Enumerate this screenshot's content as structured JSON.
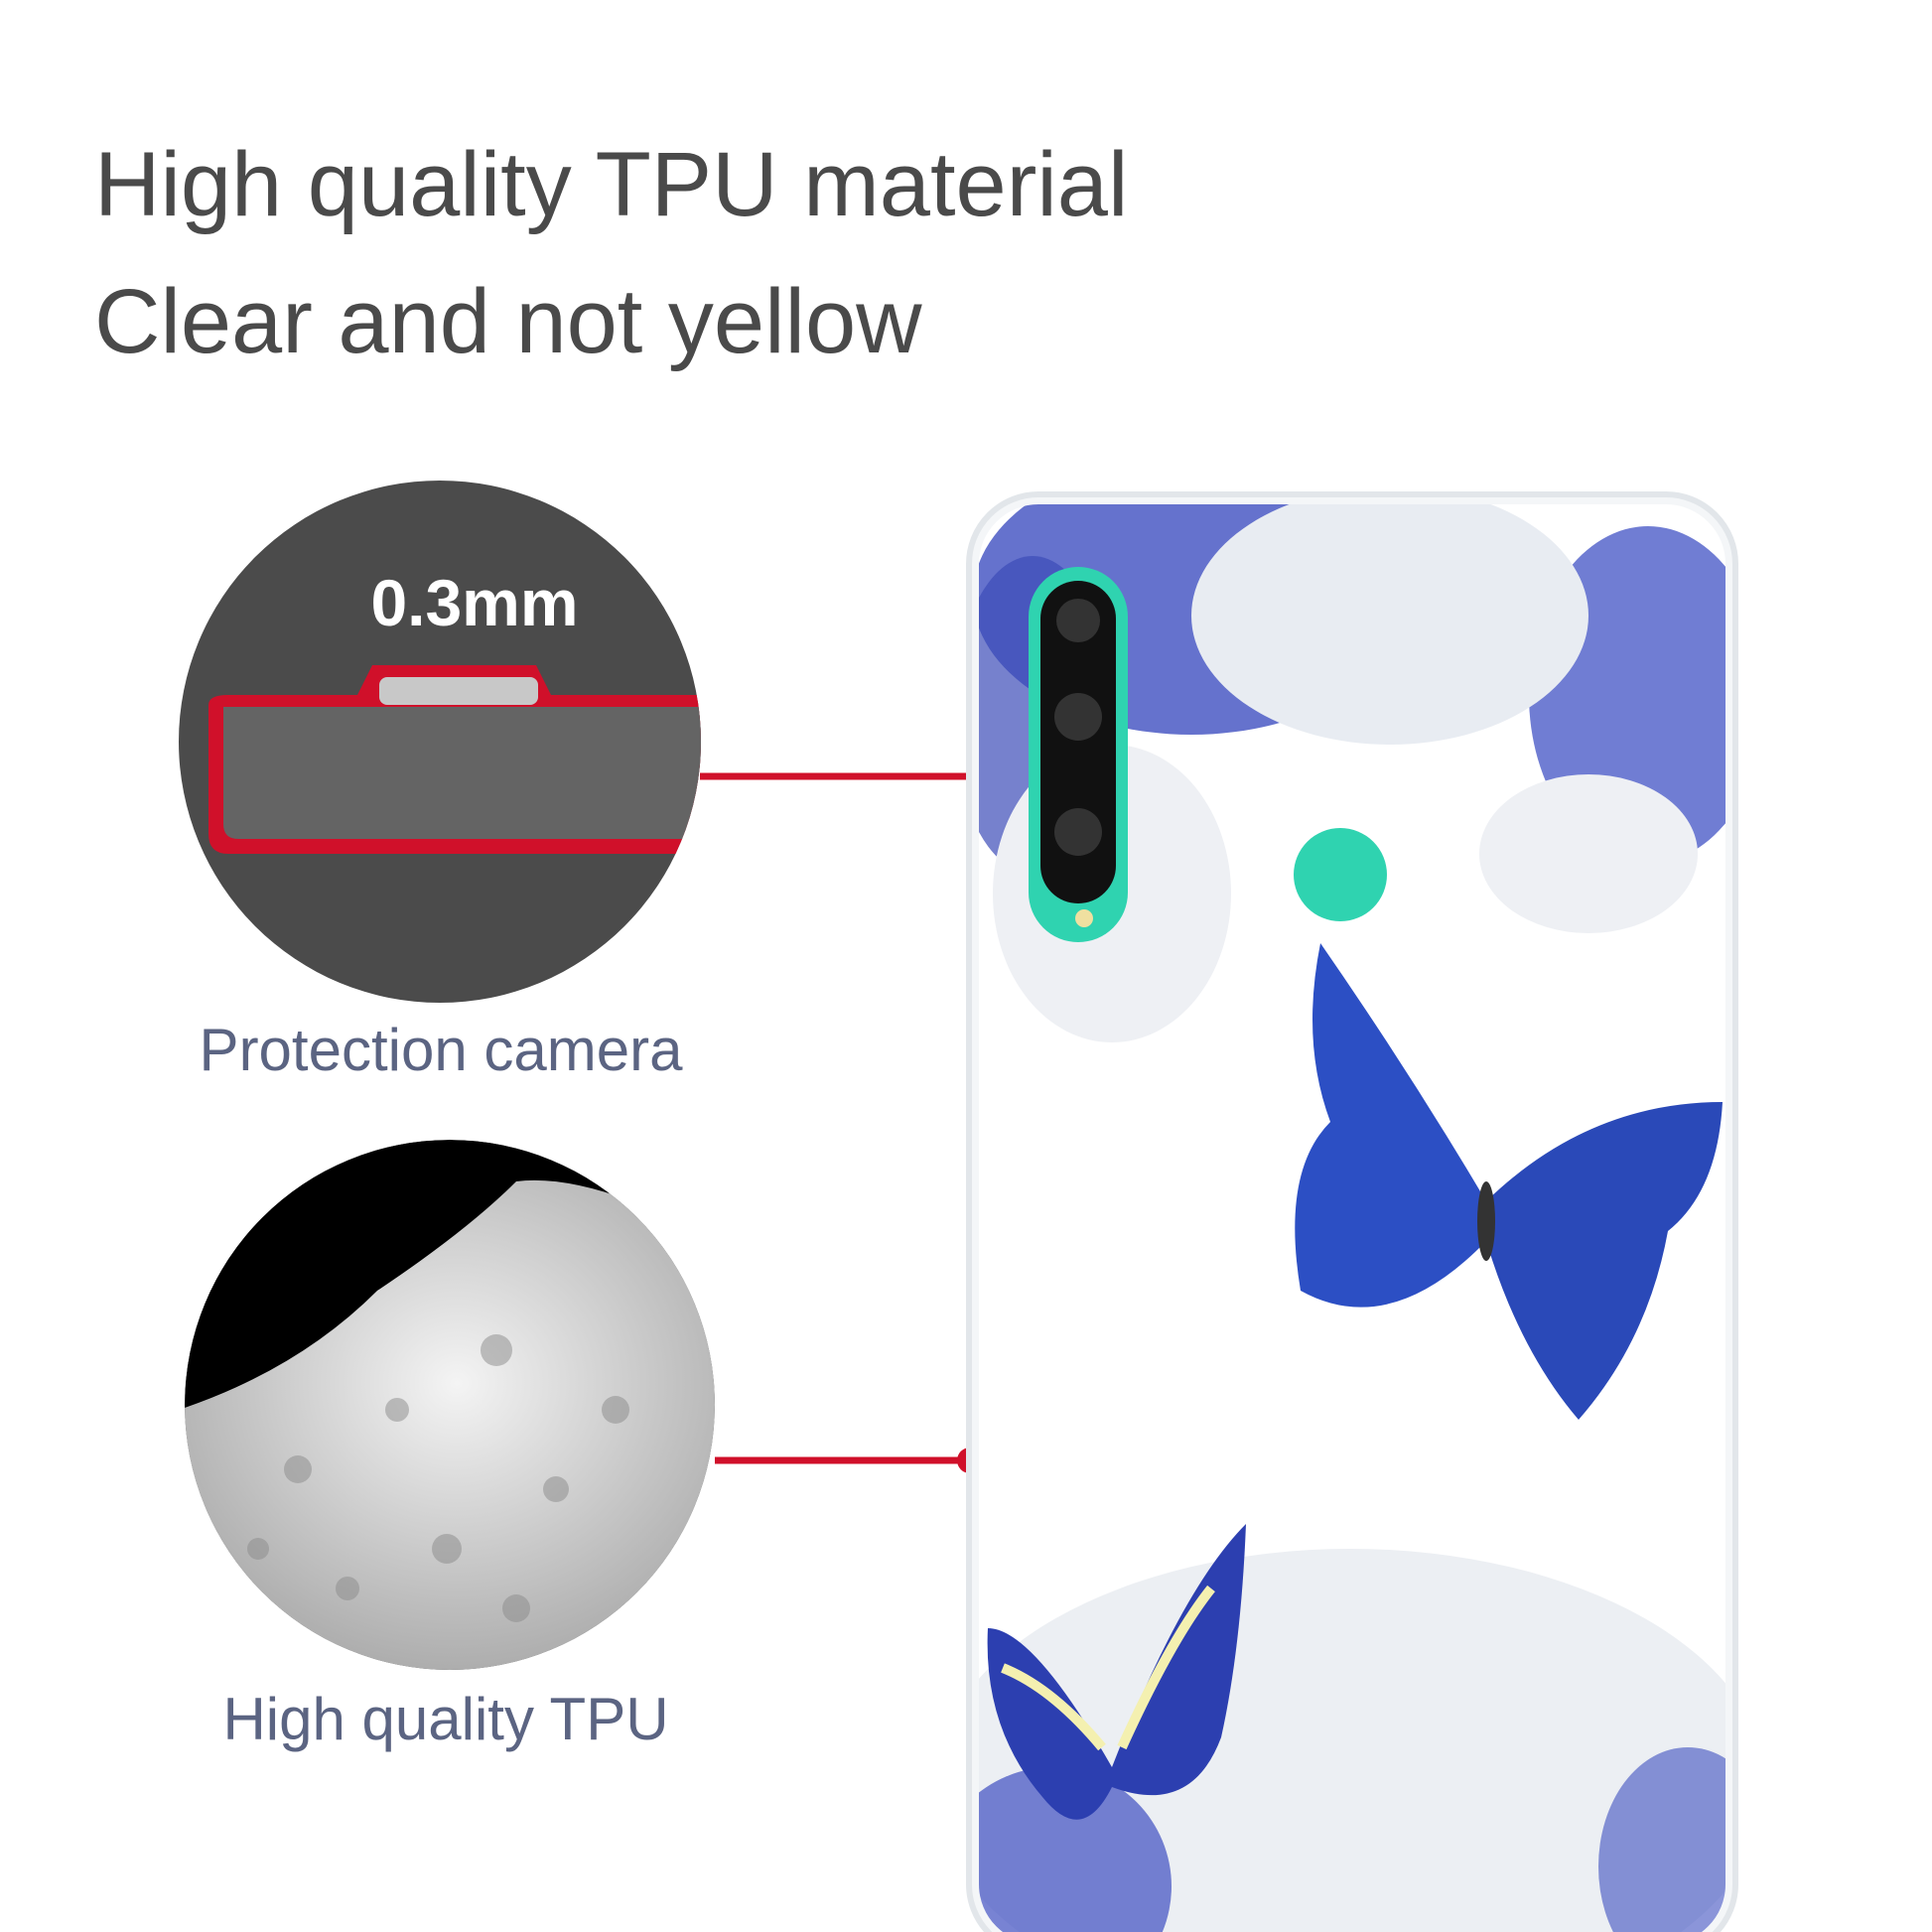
{
  "headline": {
    "line1": "High quality TPU material",
    "line2": "Clear and not yellow"
  },
  "callouts": [
    {
      "badge": "0.3mm",
      "label": "Protection camera"
    },
    {
      "label": "High quality TPU"
    }
  ],
  "colors": {
    "text": "#4a4a4a",
    "label": "#5b6482",
    "accent_red": "#d0102a",
    "phone_teal": "#2fd3b0",
    "butterfly_blue": "#2c4fc4"
  }
}
